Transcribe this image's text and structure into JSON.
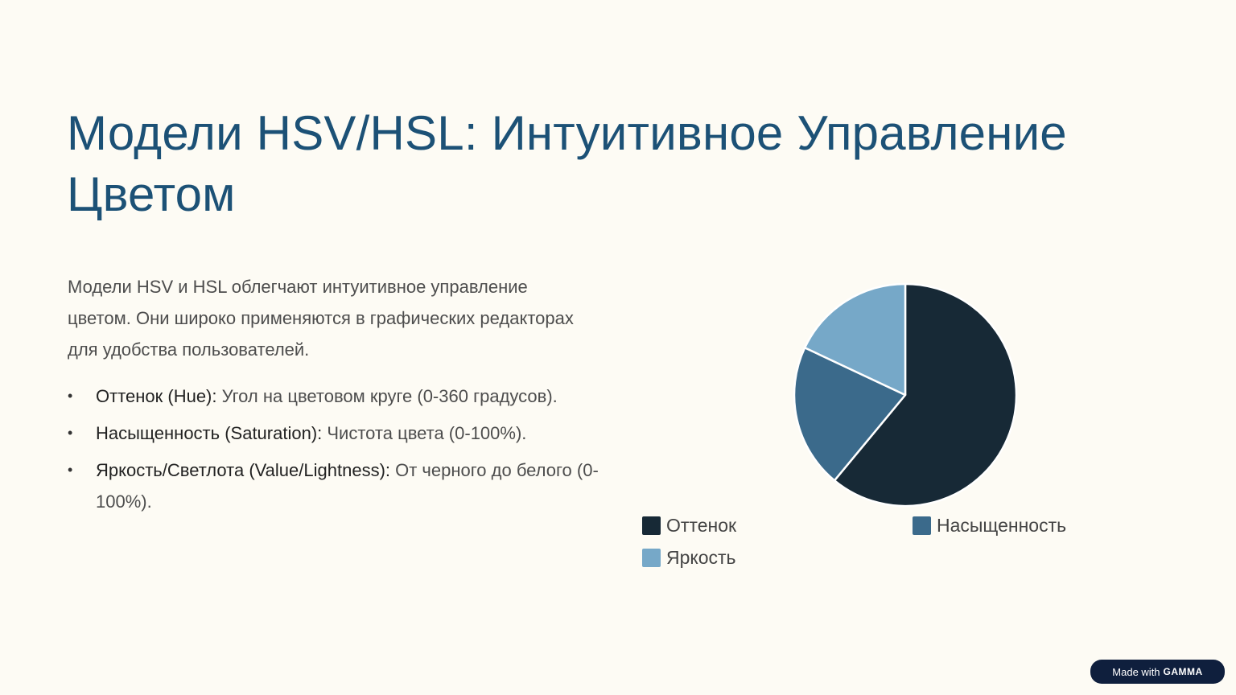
{
  "slide": {
    "title": "Модели HSV/HSL: Интуитивное Управление Цветом",
    "intro": "Модели HSV и HSL облегчают интуитивное управление цветом. Они широко применяются в графических редакторах для удобства пользователей.",
    "bullets": [
      {
        "term": "Оттенок (Hue):",
        "text": " Угол на цветовом круге (0-360 градусов)."
      },
      {
        "term": "Насыщенность (Saturation):",
        "text": " Чистота цвета (0-100%)."
      },
      {
        "term": "Яркость/Светлота (Value/Lightness):",
        "text": " От черного до белого (0-100%)."
      }
    ]
  },
  "chart_data": {
    "type": "pie",
    "title": "",
    "categories": [
      "Оттенок",
      "Насыщенность",
      "Яркость"
    ],
    "values": [
      61,
      21,
      18
    ],
    "colors": [
      "#172936",
      "#3b6a8b",
      "#76a8c8"
    ],
    "legend_position": "bottom"
  },
  "badge": {
    "made_with": "Made with",
    "brand": "GAMMA"
  }
}
